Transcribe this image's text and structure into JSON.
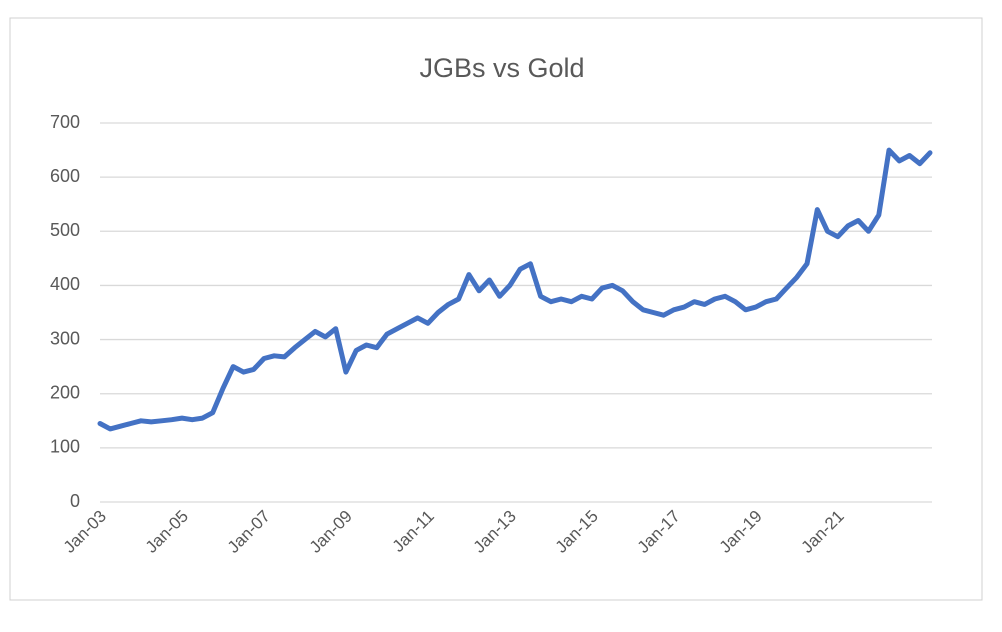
{
  "chart_data": {
    "type": "line",
    "title": "JGBs vs Gold",
    "categories": [
      "Jan-03",
      null,
      null,
      null,
      null,
      null,
      null,
      null,
      "Jan-05",
      null,
      null,
      null,
      null,
      null,
      null,
      null,
      "Jan-07",
      null,
      null,
      null,
      null,
      null,
      null,
      null,
      "Jan-09",
      null,
      null,
      null,
      null,
      null,
      null,
      null,
      "Jan-11",
      null,
      null,
      null,
      null,
      null,
      null,
      null,
      "Jan-13",
      null,
      null,
      null,
      null,
      null,
      null,
      null,
      "Jan-15",
      null,
      null,
      null,
      null,
      null,
      null,
      null,
      "Jan-17",
      null,
      null,
      null,
      null,
      null,
      null,
      null,
      "Jan-19",
      null,
      null,
      null,
      null,
      null,
      null,
      null,
      "Jan-21",
      null,
      null,
      null,
      null,
      null,
      null,
      null,
      null,
      null
    ],
    "values": [
      145,
      135,
      140,
      145,
      150,
      148,
      150,
      152,
      155,
      152,
      155,
      165,
      210,
      250,
      240,
      245,
      265,
      270,
      268,
      285,
      300,
      315,
      305,
      320,
      240,
      280,
      290,
      285,
      310,
      320,
      330,
      340,
      330,
      350,
      365,
      375,
      420,
      390,
      410,
      380,
      400,
      430,
      440,
      380,
      370,
      375,
      370,
      380,
      375,
      395,
      400,
      390,
      370,
      355,
      350,
      345,
      355,
      360,
      370,
      365,
      375,
      380,
      370,
      355,
      360,
      370,
      375,
      395,
      415,
      440,
      540,
      500,
      490,
      510,
      520,
      500,
      530,
      650,
      630,
      640,
      625,
      645
    ],
    "color": "#4472c4",
    "ylim": [
      0,
      700
    ],
    "yticks": [
      0,
      100,
      200,
      300,
      400,
      500,
      600,
      700
    ],
    "grid": true
  }
}
